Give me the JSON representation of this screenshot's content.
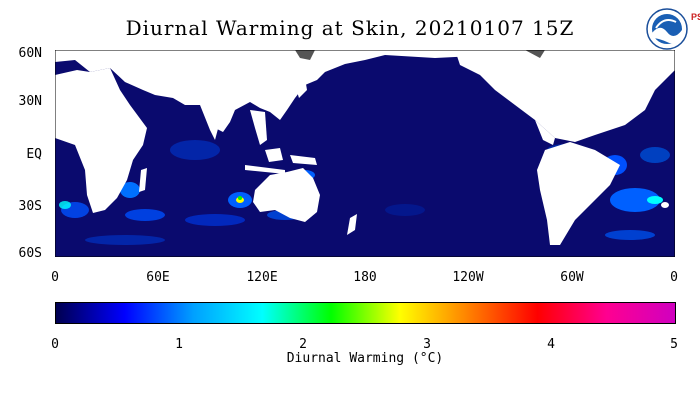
{
  "title": "Diurnal Warming at Skin, 20210107 15Z",
  "logo": {
    "icon": "noaa-logo-icon",
    "text": "NOAA",
    "side_text": "PSL"
  },
  "map": {
    "lat_labels": [
      "60N",
      "30N",
      "EQ",
      "30S",
      "60S"
    ],
    "lon_labels": [
      "0",
      "60E",
      "120E",
      "180",
      "120W",
      "60W",
      "0"
    ],
    "ocean_color": "#0a0a6e",
    "land_color": "#ffffff"
  },
  "colorbar": {
    "title": "Diurnal Warming (°C)",
    "ticks": [
      "0",
      "1",
      "2",
      "3",
      "4",
      "5"
    ],
    "colors": [
      "#000050",
      "#0000ff",
      "#00a0ff",
      "#00ffff",
      "#00ff00",
      "#ffff00",
      "#ff8000",
      "#ff0000",
      "#ff0090",
      "#d000c0"
    ]
  }
}
